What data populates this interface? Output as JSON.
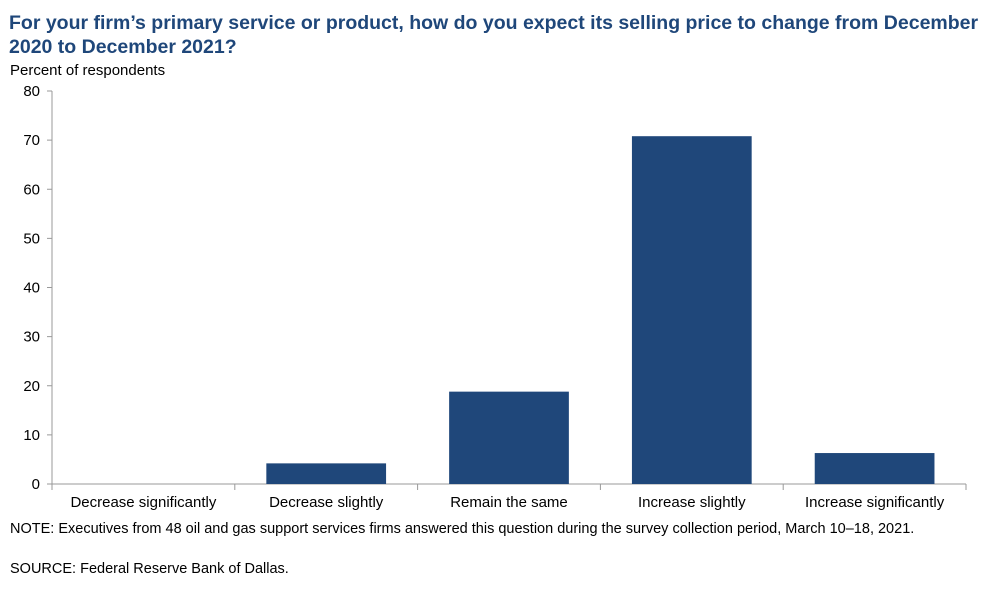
{
  "chart_data": {
    "type": "bar",
    "title": "For your firm’s primary service or product, how do you expect its selling price to change from December 2020 to December 2021?",
    "ylabel": "Percent of respondents",
    "xlabel": "",
    "categories": [
      "Decrease significantly",
      "Decrease slightly",
      "Remain the same",
      "Increase slightly",
      "Increase significantly"
    ],
    "values": [
      0,
      4.2,
      18.8,
      70.8,
      6.3
    ],
    "ylim": [
      0,
      80
    ],
    "yticks": [
      0,
      10,
      20,
      30,
      40,
      50,
      60,
      70,
      80
    ],
    "bar_color": "#1f477a",
    "grid": false
  },
  "note": "NOTE: Executives from 48 oil and gas support services firms answered this question during the survey collection period, March 10–18, 2021.",
  "source": "SOURCE: Federal Reserve Bank of Dallas."
}
